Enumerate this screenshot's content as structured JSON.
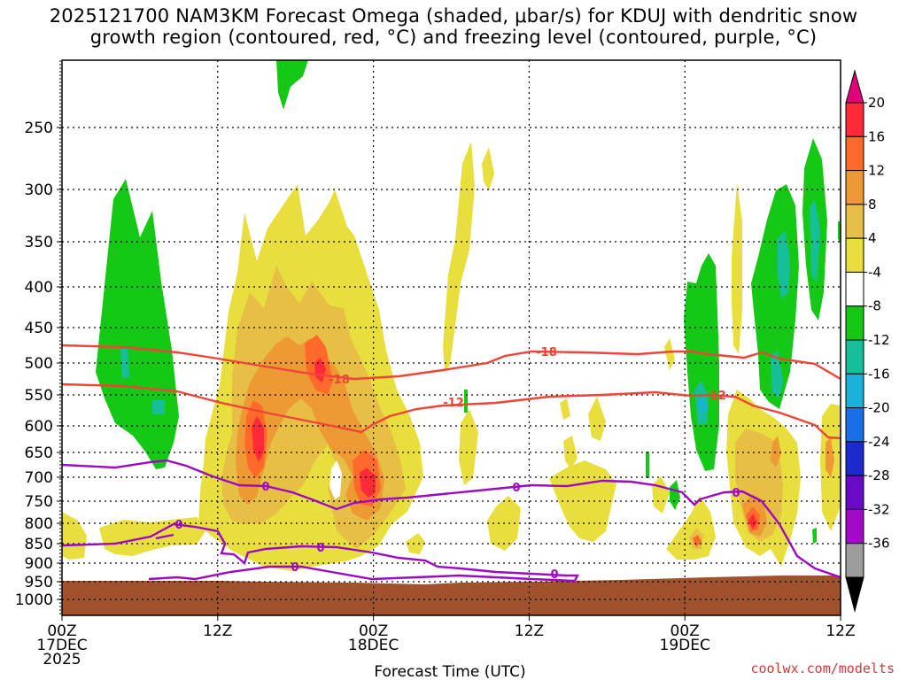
{
  "title_line1": "2025121700 NAM3KM Forecast Omega (shaded, μbar/s) for KDUJ with dendritic snow",
  "title_line2": "growth region (contoured, red, °C) and freezing level (contoured, purple, °C)",
  "watermark": "coolwx.com/modelts",
  "chart_data": {
    "type": "heatmap",
    "xlabel": "Forecast Time (UTC)",
    "ylabel": "",
    "x_range_hours": [
      0,
      60
    ],
    "x_ticks": [
      {
        "hour": 0,
        "lines": [
          "00Z",
          "17DEC",
          "2025"
        ]
      },
      {
        "hour": 12,
        "lines": [
          "12Z"
        ]
      },
      {
        "hour": 24,
        "lines": [
          "00Z",
          "18DEC"
        ]
      },
      {
        "hour": 36,
        "lines": [
          "12Z"
        ]
      },
      {
        "hour": 48,
        "lines": [
          "00Z",
          "19DEC"
        ]
      },
      {
        "hour": 60,
        "lines": [
          "12Z"
        ]
      }
    ],
    "y_ticks": [
      250,
      300,
      350,
      400,
      450,
      500,
      550,
      600,
      650,
      700,
      750,
      800,
      850,
      900,
      950,
      1000
    ],
    "grid": true,
    "colorbar": {
      "labels": [
        "20",
        "16",
        "12",
        "8",
        "4",
        "-4",
        "-8",
        "-12",
        "-16",
        "-20",
        "-24",
        "-28",
        "-32",
        "-36"
      ],
      "colors": [
        "#e0007a",
        "#ff2a38",
        "#ff6a2a",
        "#ee9a34",
        "#e8bf45",
        "#e8de3e",
        "#ffffff",
        "#16c816",
        "#16bf9a",
        "#1ab2d8",
        "#1a6ee8",
        "#1c2ad0",
        "#6a0ac8",
        "#a00ac8",
        "#9c9c9c",
        "#000000"
      ]
    },
    "terrain_color": "#a0522d",
    "contours": {
      "dgz_color": "#f04434",
      "freezing_color": "#9c0ac4",
      "labels": [
        "-18",
        "-18",
        "-12",
        "-12",
        "0",
        "0",
        "0",
        "0",
        "0",
        "0",
        "0"
      ]
    }
  }
}
